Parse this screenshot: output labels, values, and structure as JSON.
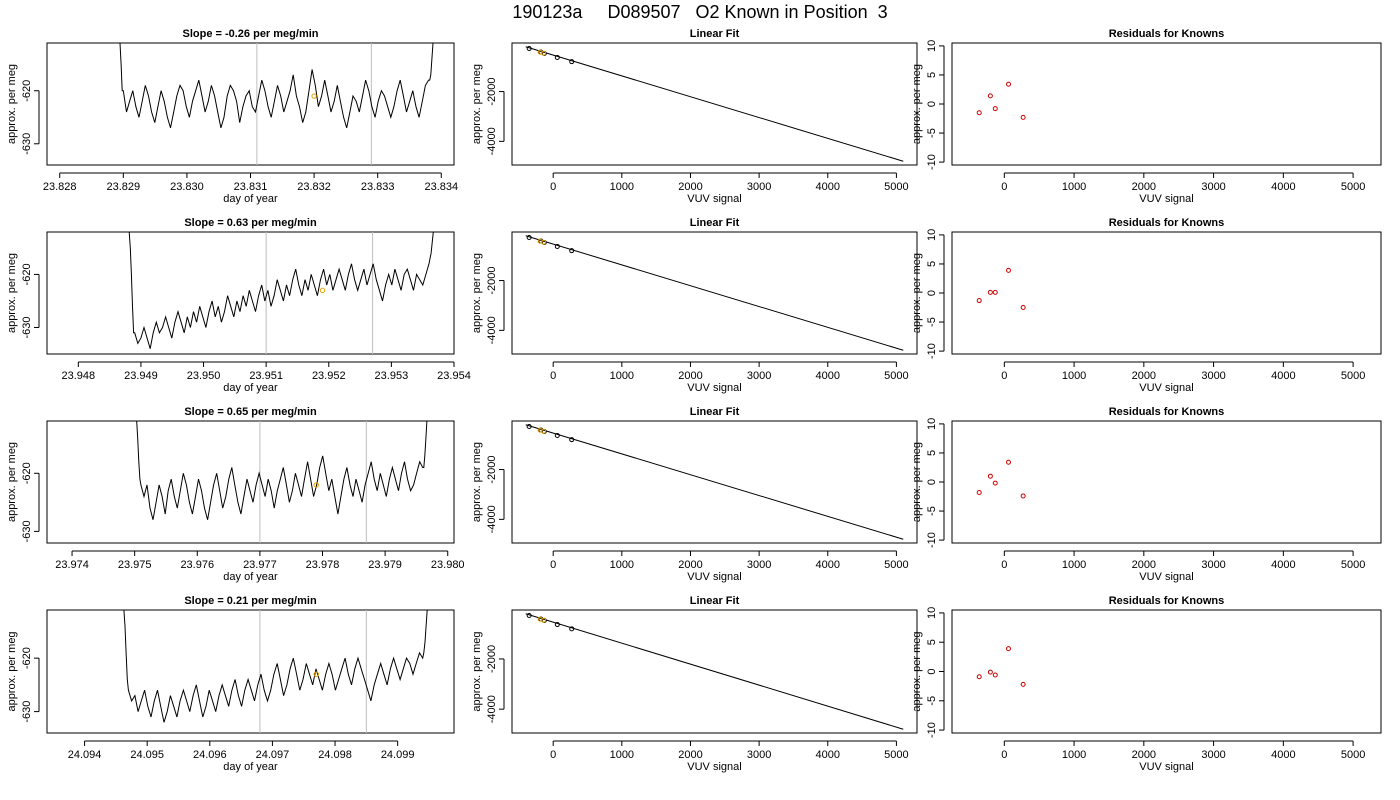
{
  "figure": {
    "title": "190123a     D089507   O2 Known in Position  3"
  },
  "colors": {
    "trace": "#000000",
    "marker_known": "#e69f00",
    "guide_line": "#bebebe",
    "residual": "#cc0000",
    "axis": "#000000"
  },
  "chart_data": [
    {
      "type": "line",
      "title": "Slope =  -0.26  per meg/min",
      "xlabel": "day of year",
      "ylabel": "approx. per meg",
      "xlim": [
        23.8278,
        23.8342
      ],
      "ylim": [
        -634,
        -611
      ],
      "xticks": [
        "23.828",
        "23.829",
        "23.830",
        "23.831",
        "23.832",
        "23.833",
        "23.834"
      ],
      "yticks": [
        "-620",
        "-630"
      ],
      "vlines": [
        23.8311,
        23.8329
      ],
      "highlight": {
        "x": 23.832,
        "y": -621
      },
      "series_x_start": 23.829,
      "series_x_end": 23.8338,
      "series_y": [
        -620,
        -624,
        -622,
        -620,
        -623,
        -625,
        -622,
        -619,
        -621,
        -624,
        -626,
        -623,
        -620,
        -622,
        -625,
        -627,
        -624,
        -621,
        -619,
        -620,
        -623,
        -625,
        -622,
        -620,
        -618,
        -621,
        -624,
        -622,
        -619,
        -621,
        -624,
        -627,
        -625,
        -621,
        -619,
        -620,
        -622,
        -626,
        -623,
        -621,
        -620,
        -623,
        -624,
        -621,
        -618,
        -620,
        -623,
        -625,
        -622,
        -619,
        -621,
        -624,
        -622,
        -620,
        -617,
        -621,
        -623,
        -626,
        -624,
        -620,
        -616,
        -619,
        -623,
        -621,
        -618,
        -621,
        -624,
        -622,
        -619,
        -622,
        -625,
        -627,
        -624,
        -621,
        -622,
        -624,
        -621,
        -618,
        -620,
        -623,
        -625,
        -622,
        -620,
        -621,
        -623,
        -625,
        -623,
        -620,
        -618,
        -621,
        -624,
        -622,
        -620,
        -623,
        -625,
        -622,
        -619,
        -618
      ],
      "series_left_tail": [
        -611,
        -611,
        -615,
        -620
      ],
      "series_right_tail": [
        -618,
        -617,
        -614,
        -611
      ]
    },
    {
      "type": "scatter",
      "title": "Linear Fit",
      "xlabel": "VUV signal",
      "ylabel": "approx. per meg",
      "xlim": [
        -600,
        5300
      ],
      "ylim": [
        -4950,
        -50
      ],
      "xticks": [
        "0",
        "1000",
        "2000",
        "3000",
        "4000",
        "5000"
      ],
      "yticks": [
        "-2000",
        "-4000"
      ],
      "fit_line": {
        "x": [
          -400,
          5100
        ],
        "y": [
          -200,
          -4800
        ]
      },
      "points": [
        {
          "x": -350,
          "y": -270
        },
        {
          "x": -180,
          "y": -410
        },
        {
          "x": -130,
          "y": -470
        },
        {
          "x": 60,
          "y": -630
        },
        {
          "x": 270,
          "y": -800
        }
      ],
      "highlight_points": [
        {
          "x": -190,
          "y": -420
        },
        {
          "x": -140,
          "y": -460
        }
      ]
    },
    {
      "type": "scatter",
      "title": "Residuals for Knowns",
      "xlabel": "VUV signal",
      "ylabel": "approx. per meg",
      "xlim": [
        -750,
        5400
      ],
      "ylim": [
        -10.5,
        10.5
      ],
      "xticks": [
        "0",
        "1000",
        "2000",
        "3000",
        "4000",
        "5000"
      ],
      "yticks": [
        "10",
        "5",
        "0",
        "-5",
        "-10"
      ],
      "points": [
        {
          "x": -360,
          "y": -1.5
        },
        {
          "x": -200,
          "y": 1.4
        },
        {
          "x": -130,
          "y": -0.8
        },
        {
          "x": 60,
          "y": 3.4
        },
        {
          "x": 270,
          "y": -2.3
        }
      ]
    },
    {
      "type": "line",
      "title": "Slope =  0.63  per meg/min",
      "xlabel": "day of year",
      "ylabel": "approx. per meg",
      "xlim": [
        23.9475,
        23.954
      ],
      "ylim": [
        -635,
        -612
      ],
      "xticks": [
        "23.948",
        "23.949",
        "23.950",
        "23.951",
        "23.952",
        "23.953",
        "23.954"
      ],
      "yticks": [
        "-620",
        "-630"
      ],
      "vlines": [
        23.951,
        23.9527
      ],
      "highlight": {
        "x": 23.9519,
        "y": -623
      },
      "series_x_start": 23.9489,
      "series_x_end": 23.9536,
      "series_y": [
        -631,
        -633,
        -632,
        -630,
        -632,
        -634,
        -631,
        -629,
        -631,
        -630,
        -628,
        -630,
        -632,
        -629,
        -627,
        -629,
        -631,
        -628,
        -630,
        -627,
        -629,
        -626,
        -628,
        -630,
        -627,
        -625,
        -628,
        -626,
        -629,
        -627,
        -624,
        -626,
        -628,
        -625,
        -627,
        -624,
        -626,
        -623,
        -625,
        -627,
        -624,
        -622,
        -625,
        -623,
        -626,
        -624,
        -621,
        -623,
        -625,
        -622,
        -624,
        -621,
        -619,
        -622,
        -624,
        -621,
        -623,
        -620,
        -622,
        -624,
        -621,
        -619,
        -622,
        -620,
        -623,
        -621,
        -619,
        -621,
        -623,
        -620,
        -618,
        -621,
        -623,
        -621,
        -619,
        -622,
        -620,
        -618,
        -621,
        -623,
        -625,
        -622,
        -620,
        -622,
        -619,
        -621,
        -623,
        -620,
        -619,
        -621,
        -623,
        -620,
        -621,
        -622,
        -620,
        -618
      ],
      "series_left_tail": [
        -612,
        -615,
        -620,
        -626,
        -631
      ],
      "series_right_tail": [
        -617,
        -616,
        -614,
        -612
      ]
    },
    {
      "type": "scatter",
      "title": "Linear Fit",
      "xlabel": "VUV signal",
      "ylabel": "approx. per meg",
      "xlim": [
        -600,
        5300
      ],
      "ylim": [
        -4950,
        -50
      ],
      "xticks": [
        "0",
        "1000",
        "2000",
        "3000",
        "4000",
        "5000"
      ],
      "yticks": [
        "-2000",
        "-4000"
      ],
      "fit_line": {
        "x": [
          -400,
          5100
        ],
        "y": [
          -200,
          -4800
        ]
      },
      "points": [
        {
          "x": -350,
          "y": -270
        },
        {
          "x": -180,
          "y": -410
        },
        {
          "x": -130,
          "y": -470
        },
        {
          "x": 60,
          "y": -630
        },
        {
          "x": 270,
          "y": -800
        }
      ],
      "highlight_points": [
        {
          "x": -190,
          "y": -420
        },
        {
          "x": -140,
          "y": -460
        }
      ]
    },
    {
      "type": "scatter",
      "title": "Residuals for Knowns",
      "xlabel": "VUV signal",
      "ylabel": "approx. per meg",
      "xlim": [
        -750,
        5400
      ],
      "ylim": [
        -10.5,
        10.5
      ],
      "xticks": [
        "0",
        "1000",
        "2000",
        "3000",
        "4000",
        "5000"
      ],
      "yticks": [
        "10",
        "5",
        "0",
        "-5",
        "-10"
      ],
      "points": [
        {
          "x": -360,
          "y": -1.3
        },
        {
          "x": -200,
          "y": 0.1
        },
        {
          "x": -130,
          "y": 0.1
        },
        {
          "x": 60,
          "y": 3.9
        },
        {
          "x": 270,
          "y": -2.5
        }
      ]
    },
    {
      "type": "line",
      "title": "Slope =  0.65  per meg/min",
      "xlabel": "day of year",
      "ylabel": "approx. per meg",
      "xlim": [
        23.9736,
        23.9801
      ],
      "ylim": [
        -632,
        -611
      ],
      "xticks": [
        "23.974",
        "23.975",
        "23.976",
        "23.977",
        "23.978",
        "23.979",
        "23.980"
      ],
      "yticks": [
        "-620",
        "-630"
      ],
      "vlines": [
        23.977,
        23.9787
      ],
      "highlight": {
        "x": 23.9779,
        "y": -622
      },
      "series_x_start": 23.9751,
      "series_x_end": 23.9796,
      "series_y": [
        -622,
        -624,
        -622,
        -626,
        -628,
        -625,
        -622,
        -624,
        -627,
        -623,
        -621,
        -624,
        -626,
        -623,
        -620,
        -622,
        -625,
        -627,
        -624,
        -621,
        -623,
        -626,
        -628,
        -625,
        -622,
        -620,
        -623,
        -626,
        -624,
        -621,
        -619,
        -622,
        -625,
        -627,
        -624,
        -621,
        -623,
        -625,
        -622,
        -620,
        -622,
        -624,
        -621,
        -623,
        -626,
        -623,
        -621,
        -619,
        -622,
        -625,
        -623,
        -620,
        -622,
        -624,
        -621,
        -618,
        -621,
        -624,
        -622,
        -619,
        -617,
        -620,
        -623,
        -621,
        -624,
        -627,
        -624,
        -621,
        -619,
        -622,
        -624,
        -621,
        -623,
        -625,
        -622,
        -620,
        -618,
        -621,
        -623,
        -620,
        -622,
        -624,
        -621,
        -619,
        -621,
        -623,
        -620,
        -618,
        -621,
        -623,
        -622,
        -620,
        -618,
        -619
      ],
      "series_left_tail": [
        -611,
        -614,
        -618,
        -621
      ],
      "series_right_tail": [
        -619,
        -617,
        -614,
        -611
      ]
    },
    {
      "type": "scatter",
      "title": "Linear Fit",
      "xlabel": "VUV signal",
      "ylabel": "approx. per meg",
      "xlim": [
        -600,
        5300
      ],
      "ylim": [
        -4950,
        -50
      ],
      "xticks": [
        "0",
        "1000",
        "2000",
        "3000",
        "4000",
        "5000"
      ],
      "yticks": [
        "-2000",
        "-4000"
      ],
      "fit_line": {
        "x": [
          -400,
          5100
        ],
        "y": [
          -200,
          -4800
        ]
      },
      "points": [
        {
          "x": -350,
          "y": -270
        },
        {
          "x": -180,
          "y": -410
        },
        {
          "x": -130,
          "y": -470
        },
        {
          "x": 60,
          "y": -630
        },
        {
          "x": 270,
          "y": -800
        }
      ],
      "highlight_points": [
        {
          "x": -190,
          "y": -420
        },
        {
          "x": -140,
          "y": -460
        }
      ]
    },
    {
      "type": "scatter",
      "title": "Residuals for Knowns",
      "xlabel": "VUV signal",
      "ylabel": "approx. per meg",
      "xlim": [
        -750,
        5400
      ],
      "ylim": [
        -10.5,
        10.5
      ],
      "xticks": [
        "0",
        "1000",
        "2000",
        "3000",
        "4000",
        "5000"
      ],
      "yticks": [
        "10",
        "5",
        "0",
        "-5",
        "-10"
      ],
      "points": [
        {
          "x": -360,
          "y": -1.8
        },
        {
          "x": -200,
          "y": 1.0
        },
        {
          "x": -130,
          "y": -0.2
        },
        {
          "x": 60,
          "y": 3.4
        },
        {
          "x": 270,
          "y": -2.4
        }
      ]
    },
    {
      "type": "line",
      "title": "Slope =  0.21  per meg/min",
      "xlabel": "day of year",
      "ylabel": "approx. per meg",
      "xlim": [
        24.0934,
        24.0999
      ],
      "ylim": [
        -634,
        -611
      ],
      "xticks": [
        "24.094",
        "24.095",
        "24.096",
        "24.097",
        "24.098",
        "24.099"
      ],
      "yticks": [
        "-620",
        "-630"
      ],
      "vlines": [
        24.0968,
        24.0985
      ],
      "highlight": {
        "x": 24.0977,
        "y": -623
      },
      "series_x_start": 24.0947,
      "series_x_end": 24.0994,
      "series_y": [
        -626,
        -628,
        -627,
        -630,
        -628,
        -626,
        -629,
        -631,
        -628,
        -626,
        -629,
        -632,
        -630,
        -627,
        -629,
        -631,
        -628,
        -626,
        -628,
        -630,
        -627,
        -625,
        -628,
        -631,
        -629,
        -626,
        -628,
        -630,
        -627,
        -625,
        -627,
        -629,
        -626,
        -624,
        -627,
        -629,
        -626,
        -624,
        -626,
        -628,
        -625,
        -623,
        -626,
        -628,
        -626,
        -623,
        -621,
        -624,
        -627,
        -625,
        -622,
        -620,
        -623,
        -626,
        -624,
        -621,
        -623,
        -625,
        -622,
        -624,
        -626,
        -623,
        -621,
        -623,
        -626,
        -624,
        -622,
        -620,
        -623,
        -625,
        -622,
        -620,
        -622,
        -624,
        -626,
        -628,
        -625,
        -623,
        -621,
        -623,
        -625,
        -622,
        -620,
        -622,
        -624,
        -622,
        -620,
        -621,
        -623,
        -621,
        -619,
        -620
      ],
      "series_left_tail": [
        -611,
        -614,
        -619,
        -624
      ],
      "series_right_tail": [
        -619,
        -617,
        -614,
        -611
      ]
    },
    {
      "type": "scatter",
      "title": "Linear Fit",
      "xlabel": "VUV signal",
      "ylabel": "approx. per meg",
      "xlim": [
        -600,
        5300
      ],
      "ylim": [
        -4950,
        -50
      ],
      "xticks": [
        "0",
        "1000",
        "2000",
        "3000",
        "4000",
        "5000"
      ],
      "yticks": [
        "-2000",
        "-4000"
      ],
      "fit_line": {
        "x": [
          -400,
          5100
        ],
        "y": [
          -200,
          -4800
        ]
      },
      "points": [
        {
          "x": -350,
          "y": -270
        },
        {
          "x": -180,
          "y": -410
        },
        {
          "x": -130,
          "y": -470
        },
        {
          "x": 60,
          "y": -630
        },
        {
          "x": 270,
          "y": -800
        }
      ],
      "highlight_points": [
        {
          "x": -190,
          "y": -420
        },
        {
          "x": -140,
          "y": -460
        }
      ]
    },
    {
      "type": "scatter",
      "title": "Residuals for Knowns",
      "xlabel": "VUV signal",
      "ylabel": "approx. per meg",
      "xlim": [
        -750,
        5400
      ],
      "ylim": [
        -10.5,
        10.5
      ],
      "xticks": [
        "0",
        "1000",
        "2000",
        "3000",
        "4000",
        "5000"
      ],
      "yticks": [
        "10",
        "5",
        "0",
        "-5",
        "-10"
      ],
      "points": [
        {
          "x": -360,
          "y": -0.9
        },
        {
          "x": -200,
          "y": -0.1
        },
        {
          "x": -130,
          "y": -0.6
        },
        {
          "x": 60,
          "y": 3.9
        },
        {
          "x": 270,
          "y": -2.2
        }
      ]
    }
  ]
}
